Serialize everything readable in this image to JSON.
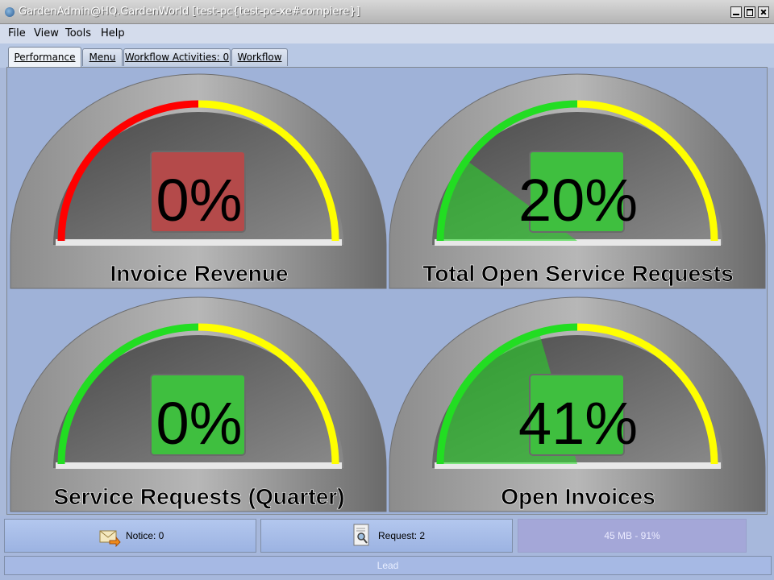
{
  "window": {
    "title": "GardenAdmin@HQ.GardenWorld [test-pc{test-pc-xe#compiere}]"
  },
  "menu": [
    "File",
    "View",
    "Tools",
    "Help"
  ],
  "tabs": [
    "Performance",
    "Menu",
    "Workflow Activities: 0",
    "Workflow"
  ],
  "active_tab": "Performance",
  "gauges": [
    {
      "title": "Invoice Revenue",
      "value": 0,
      "display": "0%",
      "status": "red"
    },
    {
      "title": "Total Open Service Requests",
      "value": 20,
      "display": "20%",
      "status": "green"
    },
    {
      "title": "Service Requests (Quarter)",
      "value": 0,
      "display": "0%",
      "status": "green"
    },
    {
      "title": "Open Invoices",
      "value": 41,
      "display": "41%",
      "status": "green"
    }
  ],
  "colors": {
    "red": "#ff0000",
    "yellow": "#ffff00",
    "green": "#22dd22"
  },
  "bottom": {
    "notice_label": "Notice: 0",
    "request_label": "Request: 2",
    "memory": "45 MB - 91%",
    "status": "Lead"
  },
  "icons": {
    "notice": "envelope-arrow-icon",
    "request": "document-search-icon"
  }
}
